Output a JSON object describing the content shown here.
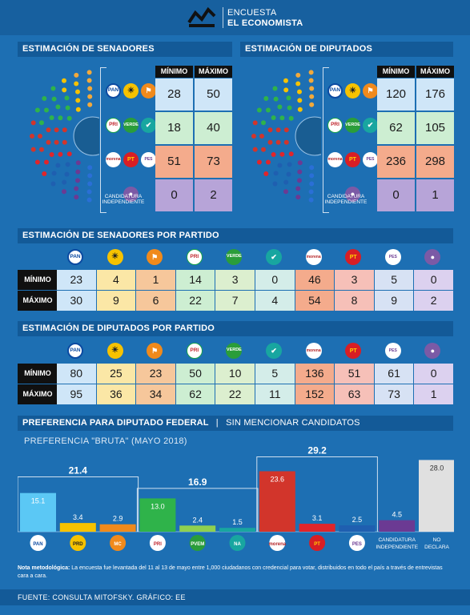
{
  "header": {
    "title_line1": "ENCUESTA",
    "title_line2": "EL ECONOMISTA"
  },
  "colors": {
    "background": "#1d6fb3",
    "panel": "#135a98",
    "pan_coalition": "#cfe6f8",
    "pri_coalition": "#cdeed2",
    "morena_coalition": "#f4ab8c",
    "independent": "#b7a4d8"
  },
  "icons": {
    "pan": "PAN",
    "prd": "PRD",
    "mc": "MC",
    "pri": "PRI",
    "pvem": "PVEM",
    "na": "NA",
    "morena": "morena",
    "pt": "PT",
    "pes": "PES",
    "ind": "candidatura-independiente-icon"
  },
  "senate_estimate": {
    "title": "ESTIMACIÓN DE SENADORES",
    "headers": [
      "MÍNIMO",
      "MÁXIMO"
    ],
    "rows": [
      {
        "min": "28",
        "max": "50"
      },
      {
        "min": "18",
        "max": "40"
      },
      {
        "min": "51",
        "max": "73"
      },
      {
        "min": "0",
        "max": "2"
      }
    ],
    "independent_label": "CANDIDATURA INDEPENDIENTE"
  },
  "deputies_estimate": {
    "title": "ESTIMACIÓN DE DIPUTADOS",
    "headers": [
      "MÍNIMO",
      "MÁXIMO"
    ],
    "rows": [
      {
        "min": "120",
        "max": "176"
      },
      {
        "min": "62",
        "max": "105"
      },
      {
        "min": "236",
        "max": "298"
      },
      {
        "min": "0",
        "max": "1"
      }
    ],
    "independent_label": "CANDIDATURA INDEPENDIENTE"
  },
  "senators_by_party": {
    "title": "ESTIMACIÓN DE SENADORES POR PARTIDO",
    "row_labels": [
      "MÍNIMO",
      "MÁXIMO"
    ],
    "min": [
      "23",
      "4",
      "1",
      "14",
      "3",
      "0",
      "46",
      "3",
      "5",
      "0"
    ],
    "max": [
      "30",
      "9",
      "6",
      "22",
      "7",
      "4",
      "54",
      "8",
      "9",
      "2"
    ]
  },
  "deputies_by_party": {
    "title": "ESTIMACIÓN DE DIPUTADOS POR PARTIDO",
    "row_labels": [
      "MÍNIMO",
      "MÁXIMO"
    ],
    "min": [
      "80",
      "25",
      "23",
      "50",
      "10",
      "5",
      "136",
      "51",
      "61",
      "0"
    ],
    "max": [
      "95",
      "36",
      "34",
      "62",
      "22",
      "11",
      "152",
      "63",
      "73",
      "1"
    ]
  },
  "preference": {
    "title": "PREFERENCIA PARA DIPUTADO FEDERAL",
    "separator": "|",
    "title_suffix": "SIN MENCIONAR CANDIDATOS",
    "subtitle": "PREFERENCIA \"BRUTA\" (MAYO 2018)"
  },
  "chart_data": {
    "type": "bar",
    "title": "PREFERENCIA PARA DIPUTADO FEDERAL",
    "subtitle": "PREFERENCIA \"BRUTA\" (MAYO 2018)",
    "categories": [
      "PAN",
      "PRD",
      "MC",
      "PRI",
      "PVEM",
      "NA",
      "morena",
      "PT",
      "PES",
      "CANDIDATURA INDEPENDIENTE",
      "NO DECLARA"
    ],
    "values": [
      15.1,
      3.4,
      2.9,
      13.0,
      2.4,
      1.5,
      23.6,
      3.1,
      2.5,
      4.5,
      28.0
    ],
    "value_labels": [
      "15.1",
      "3.4",
      "2.9",
      "13.0",
      "2.4",
      "1.5",
      "23.6",
      "3.1",
      "2.5",
      "4.5",
      "28.0"
    ],
    "colors": [
      "#5bc8f5",
      "#f6c200",
      "#f08a1c",
      "#2fb34a",
      "#8fd14f",
      "#18a6a0",
      "#d2352b",
      "#e0252b",
      "#1f5fb0",
      "#6b3a93",
      "#e0e0e0"
    ],
    "group_totals": [
      {
        "label": "21.4",
        "value": 21.4,
        "start": 0,
        "end": 2
      },
      {
        "label": "16.9",
        "value": 16.9,
        "start": 3,
        "end": 5
      },
      {
        "label": "29.2",
        "value": 29.2,
        "start": 6,
        "end": 8
      }
    ],
    "ylim": [
      0,
      30
    ]
  },
  "note": {
    "label": "Nota metodológica:",
    "text": " La encuesta fue levantada del 11 al 13 de mayo entre 1,000 ciudadanos con credencial para votar, distribuidos en todo el país a través de entrevistas cara a cara."
  },
  "footer": {
    "source": "FUENTE: CONSULTA MITOFSKY. GRÁFICO: EE"
  }
}
